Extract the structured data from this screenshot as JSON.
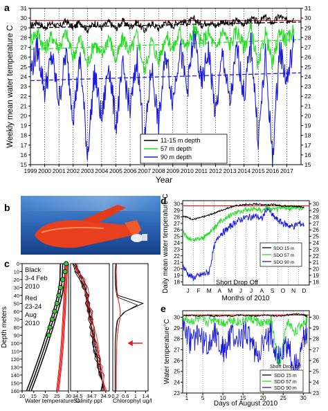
{
  "figure": {
    "panel_labels": {
      "a": "a",
      "b": "b",
      "c": "c",
      "d": "d",
      "e": "e"
    },
    "colors": {
      "black": "#000000",
      "green": "#22dd22",
      "blue": "#1a1adb",
      "red": "#e02020",
      "grid": "#000000"
    }
  },
  "chart_data": [
    {
      "id": "a",
      "type": "line",
      "title": "",
      "xlabel": "Year",
      "ylabel": "Weekly mean water temperature C",
      "xlim": [
        1999,
        2018
      ],
      "ylim": [
        15,
        31
      ],
      "x_ticks": [
        "1999",
        "2000",
        "2001",
        "2002",
        "2003",
        "2004",
        "2005",
        "2006",
        "2007",
        "2008",
        "2009",
        "2010",
        "2011",
        "2012",
        "2013",
        "2014",
        "2015",
        "2016",
        "2017"
      ],
      "y_ticks": [
        15,
        16,
        17,
        18,
        19,
        20,
        21,
        22,
        23,
        24,
        25,
        26,
        27,
        28,
        29,
        30,
        31
      ],
      "grid": "vertical dotted lines at each year",
      "legend": {
        "placement": "lower-right",
        "entries": [
          "11-15 m depth",
          "57 m depth",
          "90 m depth"
        ]
      },
      "series": [
        {
          "name": "11-15 m depth",
          "color": "#000000",
          "x": [
            1999,
            1999.5,
            2000,
            2000.5,
            2001,
            2001.5,
            2002,
            2002.5,
            2003,
            2003.5,
            2004,
            2004.5,
            2005,
            2005.5,
            2006,
            2006.5,
            2007,
            2007.5,
            2008,
            2008.5,
            2009,
            2009.5,
            2010,
            2010.5,
            2011,
            2011.5,
            2012,
            2012.5,
            2013,
            2013.5,
            2014,
            2014.5,
            2015,
            2015.5,
            2016,
            2016.5,
            2017,
            2017.5
          ],
          "y": [
            29.2,
            29.6,
            29.0,
            29.5,
            29.1,
            29.7,
            29.0,
            29.6,
            28.8,
            29.5,
            29.0,
            29.6,
            28.9,
            29.7,
            29.1,
            29.6,
            28.7,
            29.5,
            28.9,
            29.6,
            29.2,
            29.7,
            29.5,
            29.9,
            29.3,
            29.6,
            29.2,
            29.7,
            29.3,
            29.8,
            29.4,
            29.9,
            29.6,
            30.1,
            29.5,
            30.2,
            29.7,
            30.0
          ]
        },
        {
          "name": "57 m depth",
          "color": "#22dd22",
          "x": [
            1999,
            1999.5,
            2000,
            2000.5,
            2001,
            2001.5,
            2002,
            2002.5,
            2003,
            2003.5,
            2004,
            2004.5,
            2005,
            2005.5,
            2006,
            2006.5,
            2007,
            2007.5,
            2008,
            2008.5,
            2009,
            2009.5,
            2010,
            2010.5,
            2011,
            2011.5,
            2012,
            2012.5,
            2013,
            2013.5,
            2014,
            2014.5,
            2015,
            2015.5,
            2016,
            2016.5,
            2017,
            2017.5
          ],
          "y": [
            27.8,
            28.6,
            26.8,
            28.2,
            27.0,
            28.5,
            26.0,
            28.0,
            25.2,
            27.6,
            26.0,
            28.2,
            25.6,
            28.0,
            26.5,
            28.4,
            24.5,
            27.8,
            25.5,
            28.3,
            26.8,
            28.6,
            27.0,
            29.0,
            27.4,
            28.5,
            26.8,
            28.7,
            27.2,
            28.8,
            27.0,
            29.0,
            24.8,
            28.6,
            25.2,
            28.8,
            27.6,
            28.9
          ]
        },
        {
          "name": "90 m depth",
          "color": "#1a1adb",
          "x": [
            1999,
            1999.5,
            2000,
            2000.5,
            2001,
            2001.5,
            2002,
            2002.5,
            2003,
            2003.5,
            2004,
            2004.5,
            2005,
            2005.5,
            2006,
            2006.5,
            2007,
            2007.5,
            2008,
            2008.5,
            2009,
            2009.5,
            2010,
            2010.5,
            2011,
            2011.5,
            2012,
            2012.5,
            2013,
            2013.5,
            2014,
            2014.5,
            2015,
            2015.5,
            2016,
            2016.5,
            2017,
            2017.5
          ],
          "y": [
            24.5,
            27.0,
            22.5,
            26.2,
            21.5,
            26.5,
            20.0,
            25.8,
            16.0,
            24.5,
            19.5,
            25.5,
            19.0,
            25.0,
            20.5,
            26.0,
            17.0,
            25.2,
            19.0,
            26.5,
            21.5,
            27.2,
            22.5,
            28.4,
            23.0,
            26.8,
            20.0,
            26.5,
            21.0,
            27.0,
            22.0,
            27.5,
            17.5,
            26.0,
            15.6,
            27.0,
            23.5,
            27.5
          ]
        }
      ],
      "reference_lines": [
        {
          "color": "#e02020",
          "style": "solid",
          "y": [
            29.75,
            29.75
          ]
        },
        {
          "color": "#000000",
          "style": "dashed",
          "y": [
            29.0,
            29.6
          ]
        },
        {
          "color": "#22dd22",
          "style": "dashed",
          "y": [
            26.8,
            27.8
          ]
        },
        {
          "color": "#1a1adb",
          "style": "dashed",
          "y": [
            23.6,
            24.4
          ]
        }
      ]
    },
    {
      "id": "b",
      "type": "photo",
      "description_note": ""
    },
    {
      "id": "c",
      "type": "line",
      "subplots": [
        {
          "xlabel": "Water temperature C",
          "x_ticks": [
            10,
            15,
            20,
            25,
            30
          ],
          "xlim": [
            10,
            30
          ]
        },
        {
          "xlabel": "Salinity ppt",
          "x_ticks": [
            34.5,
            34.7,
            34.9
          ],
          "xlim": [
            34.4,
            34.95
          ]
        },
        {
          "xlabel": "Chlorophyl ug/l",
          "x_ticks": [
            0.2,
            0.6,
            1,
            1.4
          ],
          "xlim": [
            0.1,
            1.5
          ]
        }
      ],
      "ylabel": "Depth meters",
      "ylim": [
        160,
        0
      ],
      "y_ticks": [
        0,
        10,
        20,
        30,
        40,
        50,
        60,
        70,
        80,
        90,
        100,
        110,
        120,
        130,
        140,
        150,
        160
      ],
      "annotation_black": [
        "Black",
        "3-4 Feb",
        "2010"
      ],
      "annotation_red": [
        "Red",
        "23-24",
        "Aug",
        "2010"
      ],
      "temperature_black_profile": {
        "depth": [
          0,
          10,
          20,
          30,
          40,
          50,
          60,
          70,
          80,
          90,
          100,
          110,
          120,
          130,
          140,
          150,
          160
        ],
        "temp": [
          28.6,
          28.5,
          28.4,
          28.0,
          27.3,
          26.5,
          25.5,
          24.5,
          23.5,
          22.4,
          21.3,
          20.2,
          19.0,
          17.8,
          16.6,
          15.3,
          14.0
        ]
      },
      "temperature_red_profile": {
        "depth": [
          0,
          10,
          20,
          30,
          40,
          50,
          60,
          70,
          80,
          90,
          100,
          110,
          120,
          130,
          140,
          150,
          160
        ],
        "temp": [
          29.6,
          29.5,
          29.3,
          29.2,
          29.0,
          28.9,
          28.7,
          28.5,
          28.3,
          28.1,
          27.9,
          27.6,
          27.3,
          27.0,
          26.6,
          26.2,
          25.8
        ]
      },
      "marker_points": {
        "depth": [
          0,
          10,
          20,
          30,
          40,
          50,
          60,
          70,
          80,
          90
        ],
        "temp": [
          29.0,
          28.5,
          27.5,
          26.5,
          25.8,
          25.0,
          24.0,
          23.0,
          22.0,
          21.5
        ]
      },
      "salinity_profile": {
        "depth": [
          0,
          10,
          20,
          30,
          40,
          50,
          60,
          70,
          80,
          90,
          100,
          110,
          120,
          130,
          140,
          150,
          160
        ],
        "sal": [
          34.45,
          34.5,
          34.55,
          34.6,
          34.62,
          34.64,
          34.66,
          34.68,
          34.7,
          34.72,
          34.74,
          34.76,
          34.78,
          34.8,
          34.82,
          34.84,
          34.86
        ]
      },
      "chlorophyll_black": {
        "depth": [
          0,
          10,
          20,
          30,
          40,
          50,
          60,
          70,
          80,
          90,
          100,
          110,
          120,
          130,
          140,
          150,
          160
        ],
        "chl": [
          0.22,
          0.2,
          0.21,
          0.23,
          0.3,
          1.3,
          0.6,
          0.3,
          0.25,
          0.22,
          0.2,
          0.2,
          0.2,
          0.2,
          0.2,
          0.2,
          0.2
        ]
      },
      "chlorophyll_red": {
        "depth": [
          0,
          10,
          20,
          30,
          40,
          50,
          60,
          70,
          80,
          90,
          100,
          110,
          120,
          130,
          140,
          150,
          160
        ],
        "chl": [
          0.25,
          0.24,
          0.25,
          0.26,
          0.28,
          0.35,
          0.4,
          0.38,
          0.32,
          0.28,
          0.26,
          0.25,
          0.25,
          0.24,
          0.24,
          0.24,
          0.24
        ]
      },
      "arrow_depth": 100
    },
    {
      "id": "d",
      "type": "line",
      "xlabel": "Months of 2010",
      "ylabel": "Daily mean water temperature C",
      "x_ticks": [
        "J",
        "F",
        "M",
        "A",
        "M",
        "J",
        "J",
        "A",
        "S",
        "O",
        "N",
        "D"
      ],
      "y_ticks": [
        18,
        19,
        20,
        21,
        22,
        23,
        24,
        25,
        26,
        27,
        28,
        29,
        30
      ],
      "ylim": [
        17.5,
        30.5
      ],
      "annotation": "Short Drop Off",
      "legend": {
        "placement": "right",
        "entries": [
          "SDO 15 m",
          "SDO 57 m",
          "SDO 90 m"
        ]
      },
      "series": [
        {
          "name": "SDO 15 m",
          "color": "#000000",
          "x": [
            0,
            0.5,
            1,
            1.5,
            2,
            2.5,
            3,
            3.5,
            4,
            4.5,
            5,
            5.5,
            6,
            6.5,
            7,
            7.5,
            8,
            8.5,
            9,
            9.5,
            10,
            10.5,
            11,
            11.5
          ],
          "y": [
            28.2,
            27.9,
            27.6,
            27.8,
            28.0,
            28.3,
            28.6,
            28.9,
            29.2,
            29.5,
            29.7,
            29.8,
            29.9,
            29.9,
            30.0,
            29.9,
            29.9,
            29.9,
            29.8,
            29.7,
            29.7,
            29.6,
            29.6,
            29.5
          ]
        },
        {
          "name": "SDO 57 m",
          "color": "#22dd22",
          "x": [
            0,
            0.5,
            1,
            1.5,
            2,
            2.5,
            3,
            3.5,
            4,
            4.5,
            5,
            5.5,
            6,
            6.5,
            7,
            7.5,
            8,
            8.5,
            9,
            9.5,
            10,
            10.5,
            11,
            11.5
          ],
          "y": [
            25.6,
            24.8,
            24.4,
            24.7,
            24.8,
            25.6,
            26.2,
            27.2,
            27.8,
            28.3,
            28.7,
            28.9,
            29.1,
            29.2,
            29.3,
            29.0,
            29.5,
            29.1,
            29.2,
            29.5,
            29.3,
            29.5,
            29.3,
            29.4
          ]
        },
        {
          "name": "SDO 90 m",
          "color": "#1a1adb",
          "x": [
            0,
            0.5,
            1,
            1.5,
            2,
            2.5,
            3,
            3.5,
            4,
            4.5,
            5,
            5.5,
            6,
            6.5,
            7,
            7.5,
            8,
            8.5,
            9,
            9.5,
            10,
            10.5,
            11,
            11.5
          ],
          "y": [
            20.5,
            19.2,
            18.6,
            18.9,
            19.2,
            19.5,
            23.5,
            25.3,
            25.8,
            26.5,
            27.2,
            27.6,
            27.9,
            28.0,
            28.1,
            27.6,
            29.5,
            28.2,
            27.5,
            27.0,
            26.7,
            26.5,
            27.0,
            26.8
          ]
        }
      ],
      "reference_line": {
        "color": "#e02020",
        "y": 29.7
      }
    },
    {
      "id": "e",
      "type": "line",
      "xlabel": "Days of August 2010",
      "ylabel": "Water temperature°C",
      "x_ticks": [
        1,
        5,
        10,
        15,
        20,
        25,
        30
      ],
      "y_ticks": [
        23,
        24,
        25,
        26,
        27,
        28,
        29,
        30
      ],
      "ylim": [
        23,
        30.6
      ],
      "xlim": [
        0,
        31.5
      ],
      "legend": {
        "placement": "bottom-right",
        "entries": [
          "SDO 15 m",
          "SDO 57 m",
          "SDO 90 m"
        ]
      },
      "legend_title": "Short Drop Off",
      "series": [
        {
          "name": "SDO 15 m",
          "color": "#000000",
          "x": [
            0,
            2,
            4,
            6,
            8,
            10,
            12,
            14,
            16,
            18,
            20,
            22,
            24,
            26,
            28,
            30,
            31
          ],
          "y": [
            30.1,
            30.15,
            30.1,
            30.2,
            30.1,
            30.15,
            30.1,
            30.2,
            30.15,
            30.1,
            30.2,
            30.15,
            30.1,
            30.2,
            30.3,
            30.2,
            30.1
          ]
        },
        {
          "name": "SDO 57 m",
          "color": "#22dd22",
          "x": [
            0,
            2,
            4,
            6,
            8,
            10,
            12,
            14,
            16,
            18,
            20,
            22,
            24,
            26,
            28,
            30,
            31
          ],
          "y": [
            30.0,
            29.6,
            29.8,
            29.5,
            29.9,
            29.4,
            29.8,
            29.5,
            29.9,
            29.7,
            29.3,
            29.8,
            25.3,
            29.6,
            28.6,
            29.5,
            29.9
          ]
        },
        {
          "name": "SDO 90 m",
          "color": "#1a1adb",
          "x": [
            0,
            2,
            4,
            6,
            8,
            10,
            12,
            14,
            16,
            18,
            20,
            22,
            24,
            26,
            28,
            30,
            31
          ],
          "y": [
            29.8,
            27.6,
            28.5,
            27.2,
            28.8,
            26.9,
            28.2,
            27.8,
            28.9,
            26.5,
            27.2,
            28.5,
            26.0,
            27.5,
            25.2,
            27.8,
            29.0
          ]
        }
      ],
      "reference_line": {
        "color": "#e02020",
        "y": 30.2
      }
    }
  ]
}
